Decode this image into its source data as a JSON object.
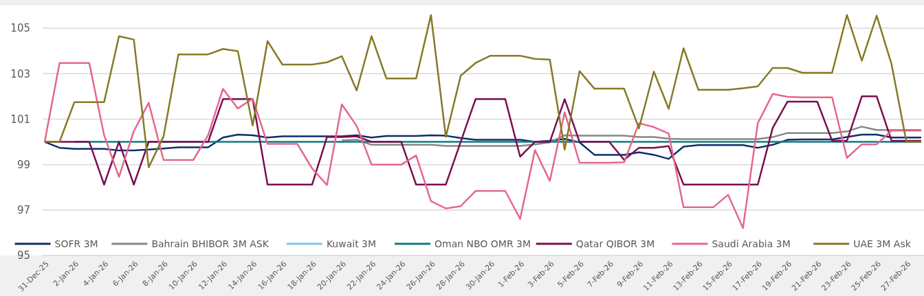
{
  "chart_data": {
    "type": "line",
    "categories": [
      "31-Dec-25",
      null,
      "2-Jan-26",
      null,
      "4-Jan-26",
      null,
      "6-Jan-26",
      null,
      "8-Jan-26",
      null,
      "10-Jan-26",
      null,
      "12-Jan-26",
      null,
      "14-Jan-26",
      null,
      "16-Jan-26",
      null,
      "18-Jan-26",
      null,
      "20-Jan-26",
      null,
      "22-Jan-26",
      null,
      "24-Jan-26",
      null,
      "26-Jan-26",
      null,
      "28-Jan-26",
      null,
      "30-Jan-26",
      null,
      "1-Feb-26",
      null,
      "3-Feb-26",
      null,
      "5-Feb-26",
      null,
      "7-Feb-26",
      null,
      "9-Feb-26",
      null,
      "11-Feb-26",
      null,
      "13-Feb-26",
      null,
      "15-Feb-26",
      null,
      "17-Feb-26",
      null,
      "19-Feb-26",
      null,
      "21-Feb-26",
      null,
      "23-Feb-26",
      null,
      "25-Feb-26",
      null,
      "27-Feb-26",
      null
    ],
    "series": [
      {
        "name": "SOFR 3M",
        "color": "#0c2f6b",
        "values": [
          100,
          99.74,
          99.69,
          99.69,
          99.69,
          99.62,
          99.62,
          99.66,
          99.71,
          99.76,
          99.76,
          99.76,
          100.19,
          100.32,
          100.29,
          100.19,
          100.24,
          100.24,
          100.24,
          100.24,
          100.24,
          100.29,
          100.19,
          100.26,
          100.26,
          100.26,
          100.29,
          100.27,
          100.17,
          100.09,
          100.09,
          100.09,
          100.09,
          100,
          100.05,
          100.13,
          99.98,
          99.43,
          99.43,
          99.43,
          99.54,
          99.43,
          99.25,
          99.79,
          99.86,
          99.86,
          99.86,
          99.86,
          99.74,
          99.87,
          100.09,
          100.11,
          100.11,
          100.11,
          100.21,
          100.32,
          100.32,
          100.19,
          100.19,
          100.19
        ]
      },
      {
        "name": "Bahrain BHIBOR 3M ASK",
        "color": "#878787",
        "values": [
          null,
          null,
          null,
          null,
          null,
          null,
          null,
          null,
          null,
          null,
          null,
          null,
          null,
          null,
          null,
          null,
          null,
          null,
          null,
          null,
          100.06,
          100.1,
          99.87,
          99.87,
          99.87,
          99.87,
          99.87,
          99.82,
          99.82,
          99.82,
          99.82,
          99.82,
          99.82,
          99.89,
          99.98,
          100.29,
          100.27,
          100.27,
          100.27,
          100.27,
          100.21,
          100.21,
          100.14,
          100.12,
          100.12,
          100.12,
          100.12,
          100.12,
          100.12,
          100.21,
          100.39,
          100.39,
          100.39,
          100.39,
          100.46,
          100.67,
          100.52,
          100.52,
          100.52,
          100.52
        ]
      },
      {
        "name": "Kuwait 3M",
        "color": "#7dc5e8",
        "values": [
          null,
          null,
          null,
          null,
          null,
          null,
          null,
          null,
          null,
          null,
          null,
          null,
          null,
          null,
          null,
          null,
          null,
          null,
          null,
          null,
          null,
          null,
          null,
          null,
          null,
          null,
          null,
          null,
          null,
          null,
          null,
          null,
          null,
          null,
          null,
          null,
          null,
          null,
          null,
          null,
          null,
          null,
          null,
          null,
          null,
          null,
          null,
          null,
          null,
          null,
          null,
          null,
          null,
          null,
          null,
          null,
          null,
          null,
          null,
          null
        ]
      },
      {
        "name": "Oman NBO OMR 3M",
        "color": "#0f7a80",
        "values": [
          null,
          null,
          100,
          100,
          100,
          100,
          100,
          100,
          100,
          100,
          100,
          100,
          100,
          100,
          100,
          100,
          100,
          100,
          100,
          100,
          100,
          100,
          100,
          100,
          100,
          100,
          100,
          100,
          100,
          100,
          100,
          100,
          100,
          100,
          100,
          100,
          100,
          100,
          100,
          100,
          100,
          100,
          100,
          100,
          100,
          100,
          100,
          100,
          100,
          100,
          100,
          100,
          100,
          100,
          100,
          100,
          100,
          100,
          100,
          100
        ]
      },
      {
        "name": "Qatar QIBOR 3M",
        "color": "#7a0e50",
        "values": [
          100,
          100,
          100,
          100,
          98.12,
          100,
          98.12,
          100,
          100,
          100,
          100,
          100,
          101.88,
          101.88,
          101.88,
          98.12,
          98.12,
          98.12,
          98.12,
          100.21,
          100.21,
          100.24,
          100,
          100,
          100,
          98.12,
          98.12,
          98.12,
          100,
          101.88,
          101.88,
          101.88,
          99.35,
          100,
          100,
          101.88,
          100,
          100,
          100,
          99.21,
          99.74,
          99.74,
          99.81,
          98.12,
          98.12,
          98.12,
          98.12,
          98.12,
          98.12,
          100.61,
          101.77,
          101.77,
          101.77,
          100.05,
          100.05,
          102,
          102,
          100.05,
          100.05,
          100.05
        ]
      },
      {
        "name": "Saudi Arabia 3M",
        "color": "#e5678a",
        "values": [
          100,
          103.47,
          103.47,
          103.47,
          100.29,
          98.46,
          100.47,
          101.72,
          99.2,
          99.2,
          99.2,
          100.29,
          102.33,
          101.47,
          101.9,
          99.91,
          99.91,
          99.91,
          98.83,
          98.1,
          101.65,
          100.7,
          99,
          99,
          99,
          99.4,
          97.39,
          97.07,
          97.17,
          97.84,
          97.84,
          97.84,
          96.61,
          99.64,
          98.28,
          101.3,
          99.08,
          99.08,
          99.08,
          99.1,
          100.82,
          100.65,
          100.37,
          97.12,
          97.12,
          97.12,
          97.67,
          96.21,
          100.82,
          102.11,
          101.98,
          101.96,
          101.96,
          101.96,
          99.3,
          99.89,
          99.89,
          100.49,
          100.49,
          100.49
        ]
      },
      {
        "name": "UAE 3M Ask",
        "color": "#857a26",
        "values": [
          100,
          100,
          101.75,
          101.75,
          101.75,
          104.65,
          104.5,
          98.88,
          100.24,
          103.85,
          103.85,
          103.85,
          104.09,
          103.99,
          100.72,
          104.43,
          103.4,
          103.4,
          103.4,
          103.5,
          103.77,
          102.26,
          104.65,
          102.79,
          102.79,
          102.79,
          105.58,
          100.22,
          102.91,
          103.47,
          103.79,
          103.79,
          103.79,
          103.65,
          103.62,
          99.66,
          103.11,
          102.34,
          102.34,
          102.34,
          100.59,
          103.09,
          101.45,
          104.12,
          102.29,
          102.29,
          102.29,
          102.36,
          102.44,
          103.25,
          103.25,
          103.04,
          103.04,
          103.04,
          105.58,
          103.57,
          105.55,
          103.42,
          100,
          100
        ]
      }
    ],
    "ylim": [
      95,
      106
    ],
    "yticks": [
      95,
      97,
      99,
      101,
      103,
      105
    ],
    "grid": "y",
    "legend": "bottom"
  }
}
